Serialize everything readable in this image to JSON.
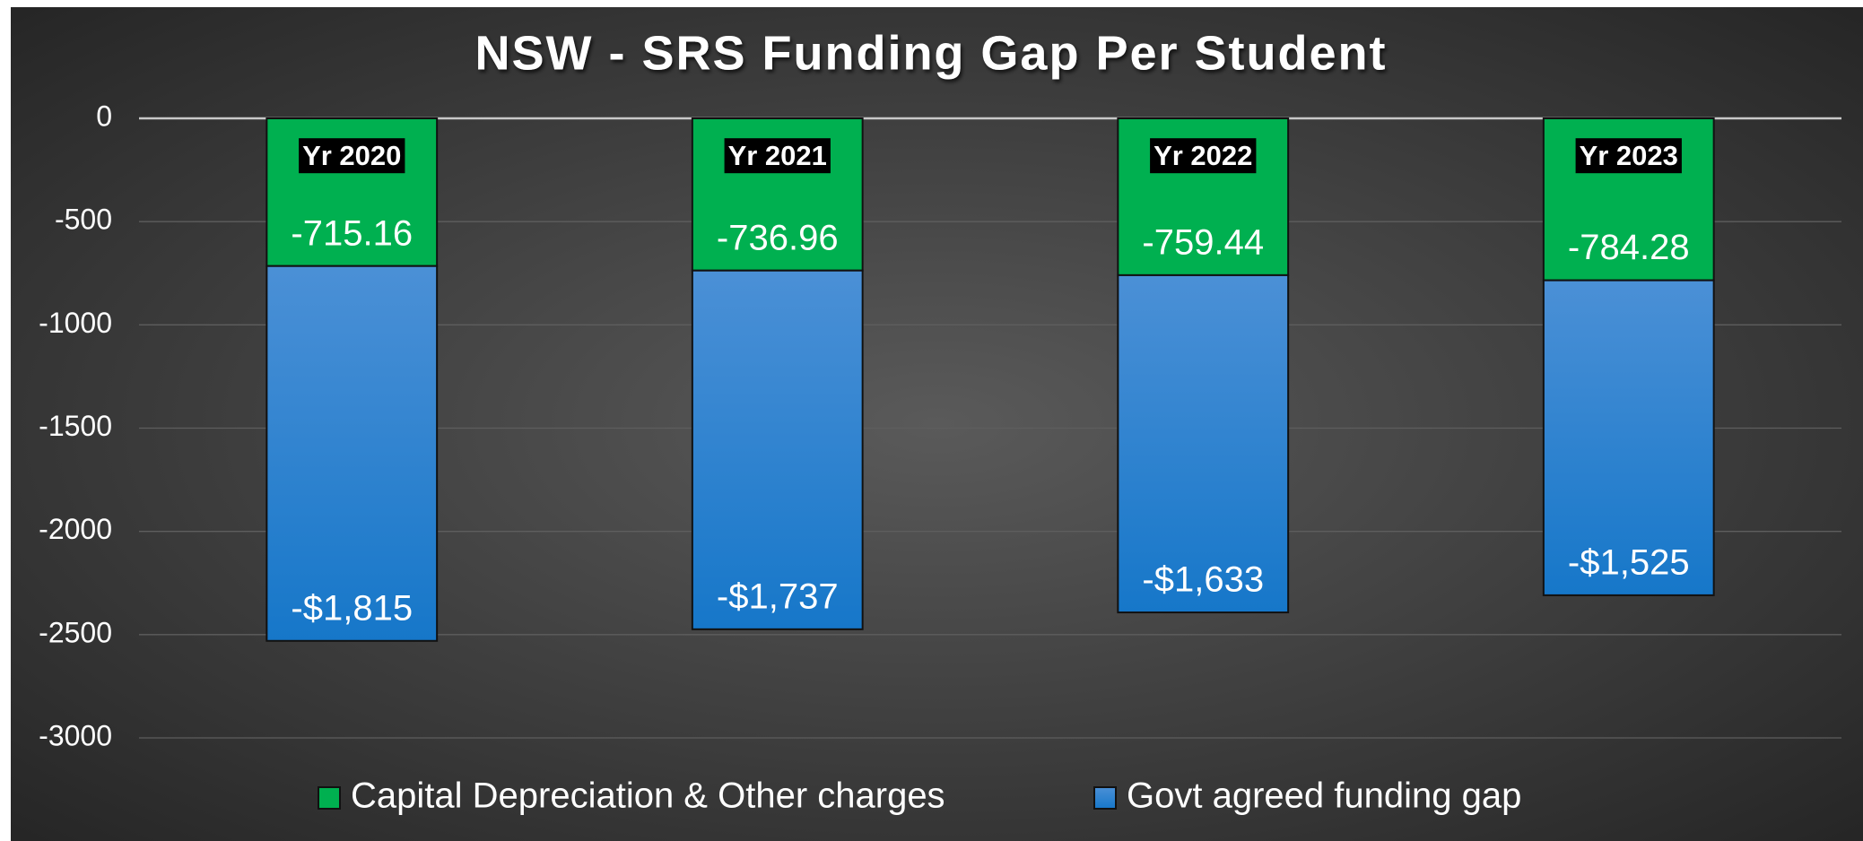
{
  "chart_data": {
    "type": "stacked_bar",
    "title": "NSW - SRS Funding Gap Per Student",
    "categories": [
      "Yr 2020",
      "Yr 2021",
      "Yr 2022",
      "Yr 2023"
    ],
    "series": [
      {
        "name": "Capital Depreciation & Other charges",
        "color": "#00b050",
        "values": [
          -715.16,
          -736.96,
          -759.44,
          -784.28
        ]
      },
      {
        "name": "Govt agreed funding gap",
        "color": "#1f7fd0",
        "values": [
          -1815,
          -1737,
          -1633,
          -1525
        ],
        "value_labels": [
          "-$1,815",
          "-$1,737",
          "-$1,633",
          "-$1,525"
        ]
      }
    ],
    "ylim": [
      -3000,
      0
    ],
    "yticks": [
      0,
      -500,
      -1000,
      -1500,
      -2000,
      -2500,
      -3000
    ],
    "grid": true,
    "legend": "bottom"
  }
}
